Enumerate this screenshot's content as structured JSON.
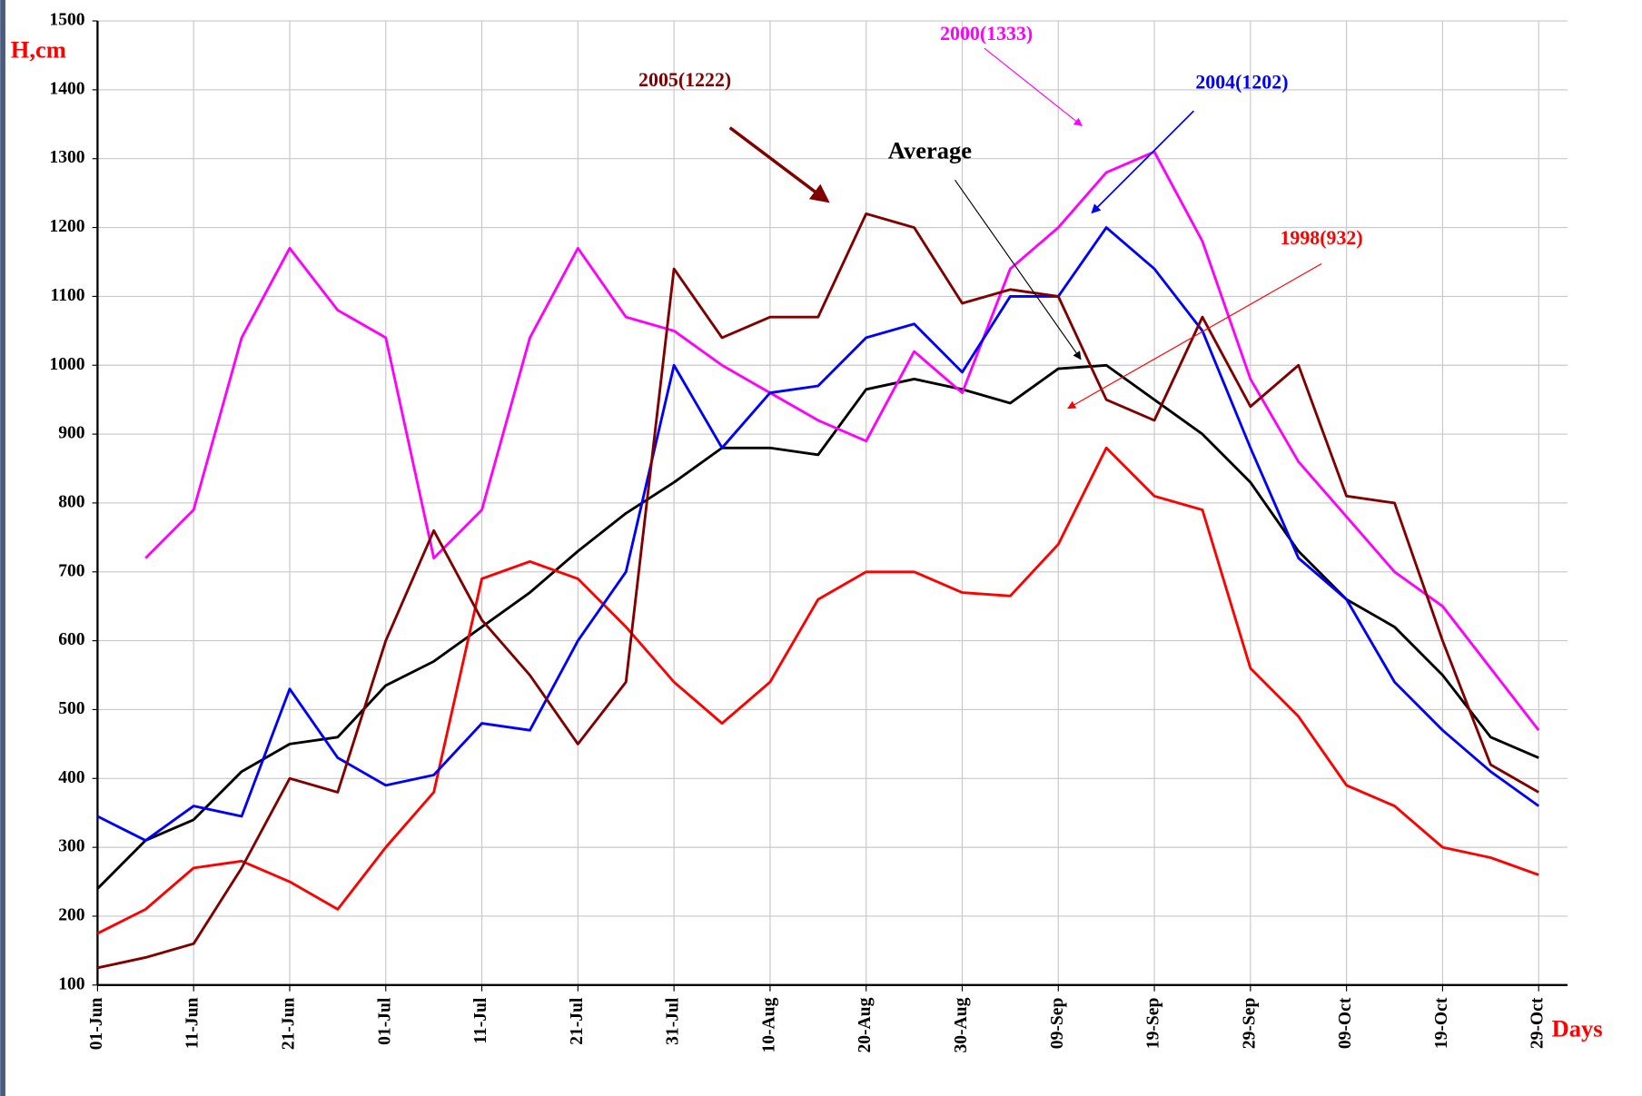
{
  "chart_data": {
    "type": "line",
    "y_label": "H,cm",
    "x_label": "Days",
    "x": [
      0,
      5,
      10,
      15,
      20,
      25,
      30,
      35,
      40,
      45,
      50,
      55,
      60,
      65,
      70,
      75,
      80,
      85,
      90,
      95,
      100,
      105,
      110,
      115,
      120,
      125,
      130,
      135,
      140,
      145,
      150
    ],
    "xlim": [
      0,
      153
    ],
    "xticks": [
      {
        "value": 0,
        "label": "01-Jun"
      },
      {
        "value": 10,
        "label": "11-Jun"
      },
      {
        "value": 20,
        "label": "21-Jun"
      },
      {
        "value": 30,
        "label": "01-Jul"
      },
      {
        "value": 40,
        "label": "11-Jul"
      },
      {
        "value": 50,
        "label": "21-Jul"
      },
      {
        "value": 60,
        "label": "31-Jul"
      },
      {
        "value": 70,
        "label": "10-Aug"
      },
      {
        "value": 80,
        "label": "20-Aug"
      },
      {
        "value": 90,
        "label": "30-Aug"
      },
      {
        "value": 100,
        "label": "09-Sep"
      },
      {
        "value": 110,
        "label": "19-Sep"
      },
      {
        "value": 120,
        "label": "29-Sep"
      },
      {
        "value": 130,
        "label": "09-Oct"
      },
      {
        "value": 140,
        "label": "19-Oct"
      },
      {
        "value": 150,
        "label": "29-Oct"
      }
    ],
    "ylim": [
      100,
      1500
    ],
    "yticks": [
      100,
      200,
      300,
      400,
      500,
      600,
      700,
      800,
      900,
      1000,
      1100,
      1200,
      1300,
      1400,
      1500
    ],
    "grid": true,
    "series": [
      {
        "name": "Average",
        "color": "#000000",
        "values": [
          240,
          310,
          340,
          410,
          450,
          460,
          535,
          570,
          620,
          670,
          730,
          785,
          830,
          880,
          880,
          870,
          965,
          980,
          965,
          945,
          995,
          1000,
          950,
          900,
          830,
          730,
          660,
          620,
          550,
          460,
          430
        ]
      },
      {
        "name": "1998(932)",
        "color": "#ff0000",
        "values": [
          175,
          210,
          270,
          280,
          250,
          210,
          300,
          380,
          690,
          715,
          690,
          620,
          540,
          480,
          540,
          660,
          700,
          700,
          670,
          665,
          740,
          880,
          810,
          790,
          560,
          490,
          390,
          360,
          300,
          285,
          260
        ]
      },
      {
        "name": "2000(1333)",
        "color": "#ff00ff",
        "values": [
          null,
          720,
          790,
          1040,
          1170,
          1080,
          1040,
          720,
          790,
          1040,
          1170,
          1070,
          1050,
          1000,
          960,
          920,
          890,
          1020,
          960,
          1140,
          1200,
          1280,
          1310,
          1180,
          980,
          860,
          780,
          700,
          650,
          560,
          470
        ]
      },
      {
        "name": "2004(1202)",
        "color": "#0000ff",
        "values": [
          345,
          310,
          360,
          345,
          530,
          430,
          390,
          405,
          480,
          470,
          600,
          700,
          1000,
          880,
          960,
          970,
          1040,
          1060,
          990,
          1100,
          1100,
          1200,
          1140,
          1050,
          880,
          720,
          660,
          540,
          470,
          410,
          360
        ]
      },
      {
        "name": "2005(1222)",
        "color": "#800000",
        "values": [
          125,
          140,
          160,
          270,
          400,
          380,
          600,
          760,
          630,
          550,
          450,
          540,
          1140,
          1040,
          1070,
          1070,
          1220,
          1200,
          1090,
          1110,
          1100,
          950,
          920,
          1070,
          940,
          1000,
          810,
          800,
          600,
          420,
          380
        ]
      }
    ]
  }
}
